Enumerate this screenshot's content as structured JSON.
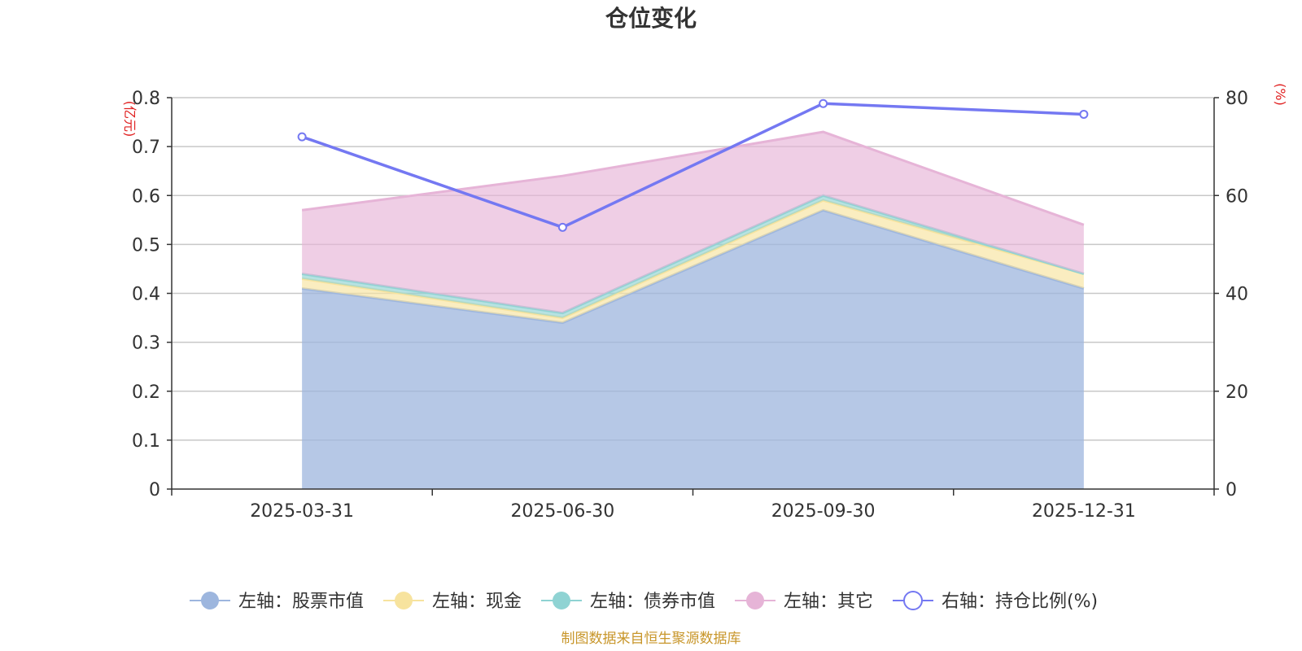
{
  "chart_data": {
    "type": "area",
    "title": "仓位变化",
    "categories": [
      "2025-03-31",
      "2025-06-30",
      "2025-09-30",
      "2025-12-31"
    ],
    "stacked": true,
    "left_axis": {
      "unit": "(亿元)",
      "range": [
        0,
        0.8
      ],
      "ticks": [
        "0",
        "0.1",
        "0.2",
        "0.3",
        "0.4",
        "0.5",
        "0.6",
        "0.7",
        "0.8"
      ]
    },
    "right_axis": {
      "unit": "(%)",
      "range": [
        0,
        80
      ],
      "ticks": [
        "0",
        "20",
        "40",
        "60",
        "80"
      ]
    },
    "series": [
      {
        "name": "左轴：股票市值",
        "axis": "left",
        "values": [
          0.41,
          0.34,
          0.57,
          0.41
        ]
      },
      {
        "name": "左轴：现金",
        "axis": "left",
        "values": [
          0.02,
          0.01,
          0.02,
          0.03
        ]
      },
      {
        "name": "左轴：债券市值",
        "axis": "left",
        "values": [
          0.01,
          0.01,
          0.01,
          0.0
        ]
      },
      {
        "name": "左轴：其它",
        "axis": "left",
        "values": [
          0.13,
          0.28,
          0.13,
          0.1
        ]
      },
      {
        "name": "右轴：持仓比例(%)",
        "axis": "right",
        "type": "line",
        "values": [
          72.0,
          53.5,
          78.8,
          76.6
        ]
      }
    ],
    "colors": {
      "stock": "#9db6de",
      "cash": "#f7e39e",
      "bond": "#8fd3d3",
      "other": "#e6b4d7",
      "ratio": "#7478f2"
    },
    "grid": true,
    "legend_position": "bottom"
  },
  "source_note": "制图数据来自恒生聚源数据库"
}
